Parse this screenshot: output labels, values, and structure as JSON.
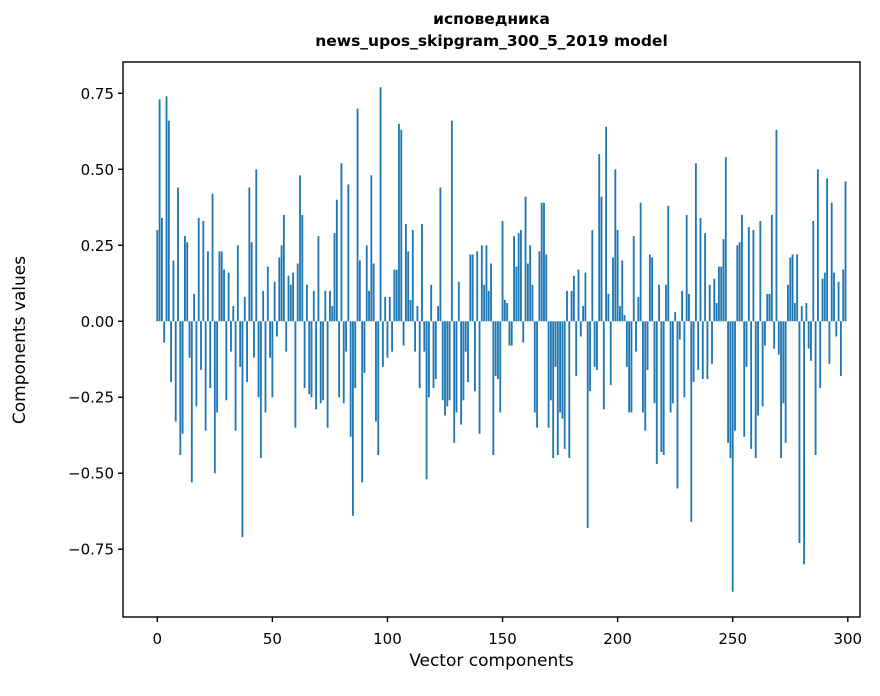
{
  "title": {
    "line1": "исповедника",
    "line2": "news_upos_skipgram_300_5_2019 model"
  },
  "chart_data": {
    "type": "bar",
    "title": "исповедника\nnews_upos_skipgram_300_5_2019 model",
    "xlabel": "Vector components",
    "ylabel": "Components values",
    "x_ticks": [
      0,
      50,
      100,
      150,
      200,
      250,
      300
    ],
    "y_ticks": [
      0.75,
      0.5,
      0.25,
      0.0,
      -0.25,
      -0.5,
      -0.75
    ],
    "xlim": [
      -14.9,
      305.3
    ],
    "ylim": [
      -0.973,
      0.853
    ],
    "grid": false,
    "legend": null,
    "bar_color": "#1f77b4",
    "background_color": "#ffffff",
    "n_components": 300,
    "values": [
      0.3,
      0.73,
      0.34,
      -0.07,
      0.74,
      0.66,
      -0.2,
      0.2,
      -0.33,
      0.44,
      -0.44,
      -0.37,
      0.28,
      0.26,
      -0.12,
      -0.53,
      0.09,
      -0.28,
      0.34,
      -0.16,
      0.33,
      -0.36,
      0.23,
      -0.22,
      0.42,
      -0.5,
      -0.3,
      0.23,
      0.23,
      0.17,
      -0.26,
      0.16,
      -0.1,
      0.05,
      -0.36,
      0.25,
      -0.15,
      -0.71,
      0.08,
      -0.2,
      0.44,
      0.26,
      -0.12,
      0.5,
      -0.25,
      -0.45,
      0.1,
      -0.3,
      0.18,
      -0.12,
      -0.25,
      0.13,
      -0.05,
      0.21,
      0.25,
      0.35,
      -0.1,
      0.15,
      0.12,
      0.16,
      -0.35,
      0.19,
      0.48,
      0.35,
      -0.22,
      0.12,
      -0.24,
      -0.25,
      0.1,
      -0.29,
      0.28,
      -0.27,
      -0.26,
      0.1,
      -0.35,
      0.1,
      0.05,
      0.29,
      0.4,
      -0.25,
      0.52,
      -0.27,
      -0.1,
      0.45,
      -0.38,
      -0.64,
      -0.22,
      0.7,
      0.2,
      -0.53,
      -0.17,
      0.25,
      0.1,
      0.48,
      0.19,
      -0.33,
      -0.44,
      0.77,
      -0.15,
      0.08,
      -0.12,
      0.08,
      -0.1,
      0.17,
      0.17,
      0.65,
      0.63,
      -0.08,
      0.32,
      0.23,
      0.07,
      0.3,
      -0.1,
      0.05,
      -0.22,
      0.32,
      -0.1,
      -0.52,
      -0.25,
      0.12,
      -0.22,
      -0.19,
      0.05,
      0.44,
      -0.26,
      -0.31,
      -0.28,
      -0.26,
      0.66,
      -0.4,
      -0.3,
      0.13,
      -0.34,
      -0.26,
      -0.1,
      -0.2,
      0.22,
      0.22,
      -0.23,
      0.23,
      -0.37,
      0.25,
      0.12,
      0.25,
      0.1,
      0.19,
      -0.44,
      -0.18,
      -0.19,
      -0.3,
      0.33,
      0.07,
      0.06,
      -0.08,
      -0.08,
      0.28,
      0.18,
      0.29,
      0.3,
      -0.07,
      0.41,
      0.19,
      0.25,
      0.12,
      -0.3,
      -0.35,
      0.23,
      0.39,
      0.39,
      0.22,
      -0.35,
      -0.26,
      -0.45,
      -0.15,
      -0.44,
      -0.3,
      -0.32,
      -0.42,
      0.1,
      -0.45,
      0.1,
      0.15,
      -0.18,
      0.17,
      -0.05,
      0.05,
      0.16,
      -0.68,
      -0.23,
      0.3,
      -0.15,
      -0.16,
      0.55,
      0.41,
      -0.29,
      0.64,
      0.09,
      -0.21,
      0.21,
      0.5,
      0.3,
      0.05,
      0.2,
      0.02,
      -0.15,
      -0.3,
      -0.3,
      0.28,
      -0.1,
      0.08,
      0.39,
      -0.3,
      -0.36,
      -0.16,
      0.22,
      0.21,
      -0.27,
      -0.47,
      0.12,
      -0.43,
      -0.44,
      0.12,
      0.38,
      -0.3,
      -0.27,
      0.03,
      -0.55,
      -0.06,
      0.1,
      -0.25,
      0.35,
      0.09,
      -0.66,
      -0.2,
      0.52,
      -0.16,
      0.34,
      -0.19,
      0.29,
      -0.19,
      0.12,
      -0.14,
      0.14,
      0.06,
      0.18,
      0.18,
      0.27,
      0.54,
      -0.4,
      -0.45,
      -0.89,
      -0.36,
      0.25,
      0.26,
      0.35,
      -0.38,
      -0.15,
      0.31,
      -0.42,
      0.3,
      -0.45,
      -0.31,
      0.33,
      -0.28,
      -0.08,
      0.09,
      0.09,
      0.35,
      -0.09,
      0.63,
      -0.11,
      -0.45,
      -0.27,
      -0.4,
      0.12,
      0.21,
      0.22,
      0.06,
      0.22,
      -0.73,
      0.05,
      -0.8,
      0.06,
      -0.09,
      -0.13,
      0.33,
      -0.44,
      0.5,
      -0.22,
      0.14,
      0.16,
      0.47,
      -0.14,
      0.39,
      0.16,
      -0.05,
      0.13,
      -0.18,
      0.17,
      0.46
    ]
  }
}
